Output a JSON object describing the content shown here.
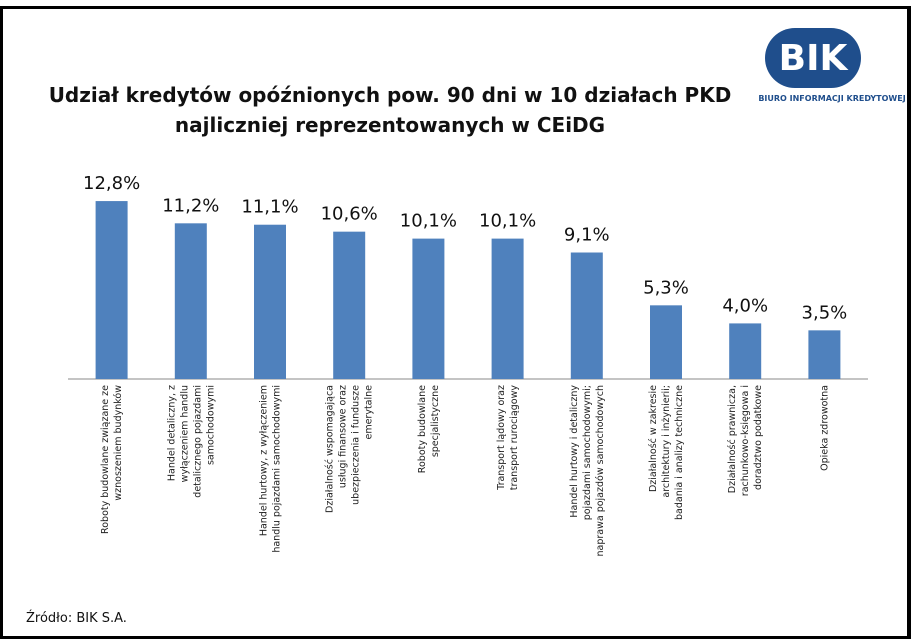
{
  "logo": {
    "text": "BIK",
    "subtitle": "BIURO INFORMACJI KREDYTOWEJ"
  },
  "chart_data": {
    "type": "bar",
    "title": "Udział kredytów opóźnionych pow. 90 dni w 10 działach PKD najliczniej reprezentowanych w CEiDG",
    "categories": [
      "Roboty budowlane związane ze wznoszeniem budynków",
      "Handel detaliczny, z wyłączeniem handlu detalicznego pojazdami samochodowymi",
      "Handel hurtowy, z wyłączeniem handlu pojazdami samochodowymi",
      "Działalność wspomagająca usługi finansowe oraz ubezpieczenia i fundusze emerytalne",
      "Roboty budowlane specjalistyczne",
      "Transport lądowy oraz transport rurociągowy",
      "Handel hurtowy i detaliczny pojazdami samochodowymi; naprawa pojazdów samochodowych",
      "Działalność w zakresie architektury i inżynierii; badania i analizy techniczne",
      "Działalność prawnicza, rachunkowo-księgowa i doradztwo podatkowe",
      "Opieka zdrowotna"
    ],
    "values": [
      12.8,
      11.2,
      11.1,
      10.6,
      10.1,
      10.1,
      9.1,
      5.3,
      4.0,
      3.5
    ],
    "value_labels": [
      "12,8%",
      "11,2%",
      "11,1%",
      "10,6%",
      "10,1%",
      "10,1%",
      "9,1%",
      "5,3%",
      "4,0%",
      "3,5%"
    ],
    "color": "#4f81bd",
    "source": "Źródło: BIK S.A."
  }
}
